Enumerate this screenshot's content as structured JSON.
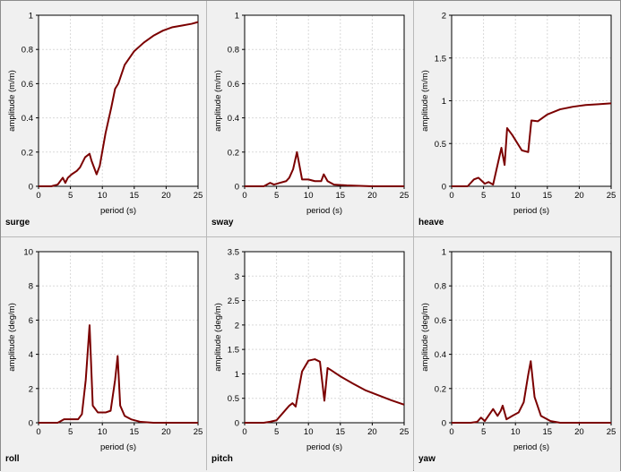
{
  "chart_data": [
    {
      "type": "line",
      "label": "surge",
      "xlabel": "period (s)",
      "ylabel": "amplitude (m/m)",
      "xlim": [
        0,
        25
      ],
      "ylim": [
        0,
        1
      ],
      "xticks": [
        "0",
        "5",
        "10",
        "15",
        "20",
        "25"
      ],
      "yticks": [
        "0",
        "0.2",
        "0.4",
        "0.6",
        "0.8",
        "1"
      ],
      "grid": true,
      "color": "#7b0000",
      "series": [
        {
          "x": [
            0,
            2,
            3,
            3.8,
            4.2,
            4.6,
            5.2,
            6,
            6.5,
            7.3,
            8,
            8.3,
            9.1,
            9.6,
            10.5,
            11.4,
            12,
            12.5,
            13.5,
            15,
            16.5,
            18,
            19.5,
            21,
            22.5,
            24,
            25
          ],
          "y": [
            0,
            0,
            0.01,
            0.05,
            0.02,
            0.05,
            0.07,
            0.09,
            0.11,
            0.17,
            0.19,
            0.15,
            0.07,
            0.12,
            0.31,
            0.46,
            0.57,
            0.6,
            0.71,
            0.79,
            0.84,
            0.88,
            0.91,
            0.93,
            0.94,
            0.95,
            0.96
          ]
        }
      ]
    },
    {
      "type": "line",
      "label": "sway",
      "xlabel": "period (s)",
      "ylabel": "amplitude (m/m)",
      "xlim": [
        0,
        25
      ],
      "ylim": [
        0,
        1
      ],
      "xticks": [
        "0",
        "5",
        "10",
        "15",
        "20",
        "25"
      ],
      "yticks": [
        "0",
        "0.2",
        "0.4",
        "0.6",
        "0.8",
        "1"
      ],
      "grid": true,
      "color": "#7b0000",
      "series": [
        {
          "x": [
            0,
            3,
            4,
            4.6,
            5.5,
            6.5,
            7,
            7.6,
            8.2,
            9,
            10,
            11,
            12,
            12.4,
            13,
            14,
            16,
            20,
            25
          ],
          "y": [
            0,
            0,
            0.02,
            0.01,
            0.02,
            0.03,
            0.05,
            0.1,
            0.2,
            0.04,
            0.04,
            0.03,
            0.03,
            0.07,
            0.03,
            0.01,
            0.005,
            0,
            0
          ]
        }
      ]
    },
    {
      "type": "line",
      "label": "heave",
      "xlabel": "period (s)",
      "ylabel": "amplitude (m/m)",
      "xlim": [
        0,
        25
      ],
      "ylim": [
        0,
        2
      ],
      "xticks": [
        "0",
        "5",
        "10",
        "15",
        "20",
        "25"
      ],
      "yticks": [
        "0",
        "0.5",
        "1",
        "1.5",
        "2"
      ],
      "grid": true,
      "color": "#7b0000",
      "series": [
        {
          "x": [
            0,
            2.5,
            3.5,
            4.2,
            5.2,
            5.8,
            6.5,
            7.8,
            8.3,
            8.7,
            9.5,
            11,
            12,
            12.5,
            13.5,
            15,
            17,
            19,
            21,
            23,
            25
          ],
          "y": [
            0,
            0,
            0.08,
            0.1,
            0.03,
            0.05,
            0.02,
            0.45,
            0.25,
            0.68,
            0.6,
            0.42,
            0.4,
            0.77,
            0.76,
            0.84,
            0.9,
            0.93,
            0.95,
            0.96,
            0.97
          ]
        }
      ]
    },
    {
      "type": "line",
      "label": "roll",
      "xlabel": "period (s)",
      "ylabel": "amplitude (deg/m)",
      "xlim": [
        0,
        25
      ],
      "ylim": [
        0,
        10
      ],
      "xticks": [
        "0",
        "5",
        "10",
        "15",
        "20",
        "25"
      ],
      "yticks": [
        "0",
        "2",
        "4",
        "6",
        "8",
        "10"
      ],
      "grid": true,
      "color": "#7b0000",
      "series": [
        {
          "x": [
            0,
            3,
            3.5,
            4,
            6.2,
            6.8,
            7.4,
            8,
            8.5,
            9.3,
            10.5,
            11.3,
            12,
            12.4,
            12.8,
            13.5,
            14.5,
            16,
            18,
            25
          ],
          "y": [
            0,
            0,
            0.1,
            0.2,
            0.2,
            0.5,
            2.5,
            5.7,
            1,
            0.6,
            0.6,
            0.7,
            2.5,
            3.9,
            1,
            0.4,
            0.2,
            0.05,
            0,
            0
          ]
        }
      ]
    },
    {
      "type": "line",
      "label": "pitch",
      "xlabel": "period (s)",
      "ylabel": "amplitude (deg/m)",
      "xlim": [
        0,
        25
      ],
      "ylim": [
        0,
        3.5
      ],
      "xticks": [
        "0",
        "5",
        "10",
        "15",
        "20",
        "25"
      ],
      "yticks": [
        "0",
        "0.5",
        "1",
        "1.5",
        "2",
        "2.5",
        "3",
        "3.5"
      ],
      "grid": true,
      "color": "#7b0000",
      "series": [
        {
          "x": [
            0,
            3,
            4,
            5,
            6,
            7,
            7.5,
            8,
            9,
            10,
            11,
            11.8,
            12.5,
            13,
            13.5,
            15,
            17,
            19,
            21,
            23,
            25
          ],
          "y": [
            0,
            0,
            0.02,
            0.05,
            0.2,
            0.35,
            0.4,
            0.33,
            1.05,
            1.27,
            1.3,
            1.25,
            0.45,
            1.12,
            1.08,
            0.95,
            0.8,
            0.66,
            0.56,
            0.46,
            0.37
          ]
        }
      ]
    },
    {
      "type": "line",
      "label": "yaw",
      "xlabel": "period (s)",
      "ylabel": "amplitude (deg/m)",
      "xlim": [
        0,
        25
      ],
      "ylim": [
        0,
        1
      ],
      "xticks": [
        "0",
        "5",
        "10",
        "15",
        "20",
        "25"
      ],
      "yticks": [
        "0",
        "0.2",
        "0.4",
        "0.6",
        "0.8",
        "1"
      ],
      "grid": true,
      "color": "#7b0000",
      "series": [
        {
          "x": [
            0,
            3,
            4,
            4.6,
            5.2,
            6.5,
            7.2,
            7.7,
            8,
            8.6,
            9.5,
            10.5,
            11.3,
            12,
            12.4,
            13,
            14,
            15.5,
            17,
            25
          ],
          "y": [
            0,
            0,
            0.005,
            0.03,
            0.01,
            0.08,
            0.04,
            0.07,
            0.1,
            0.02,
            0.04,
            0.06,
            0.12,
            0.28,
            0.36,
            0.15,
            0.04,
            0.01,
            0,
            0
          ]
        }
      ]
    }
  ]
}
